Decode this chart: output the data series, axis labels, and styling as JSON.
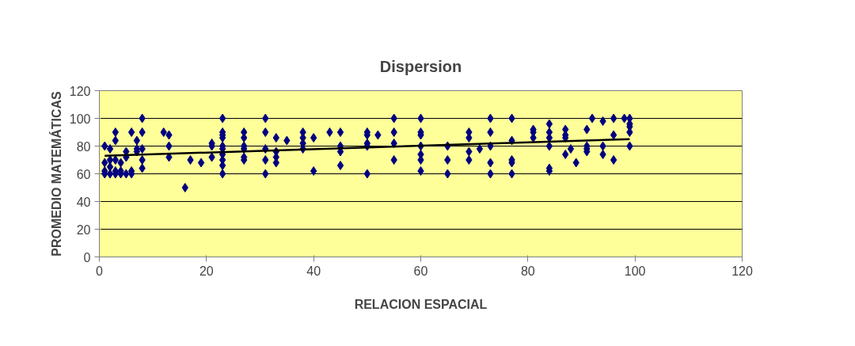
{
  "chart_data": {
    "type": "scatter",
    "title": "Dispersion",
    "xlabel": "RELACION ESPACIAL",
    "ylabel": "PROMEDIO MATEMÁTICAS",
    "xlim": [
      0,
      120
    ],
    "xticks": [
      0,
      20,
      40,
      60,
      80,
      100,
      120
    ],
    "ylim": [
      0,
      120
    ],
    "yticks": [
      0,
      20,
      40,
      60,
      80,
      100,
      120
    ],
    "grid": "y",
    "marker": "diamond",
    "series": [
      {
        "color": "#000080",
        "x": [
          1,
          1,
          1,
          1,
          2,
          2,
          2,
          2,
          3,
          3,
          3,
          3,
          3,
          4,
          4,
          4,
          5,
          5,
          5,
          6,
          6,
          6,
          7,
          7,
          7,
          8,
          8,
          8,
          8,
          8,
          12,
          13,
          13,
          13,
          16,
          17,
          19,
          21,
          21,
          21,
          23,
          23,
          23,
          23,
          23,
          23,
          23,
          23,
          23,
          23,
          27,
          27,
          27,
          27,
          27,
          27,
          31,
          31,
          31,
          31,
          31,
          33,
          33,
          33,
          33,
          35,
          38,
          38,
          38,
          38,
          40,
          40,
          43,
          45,
          45,
          45,
          45,
          50,
          50,
          50,
          50,
          50,
          52,
          55,
          55,
          55,
          55,
          60,
          60,
          60,
          60,
          60,
          60,
          60,
          65,
          65,
          65,
          69,
          69,
          69,
          69,
          71,
          73,
          73,
          73,
          73,
          73,
          77,
          77,
          77,
          77,
          77,
          81,
          81,
          81,
          84,
          84,
          84,
          84,
          84,
          84,
          87,
          87,
          87,
          87,
          88,
          89,
          91,
          91,
          91,
          91,
          92,
          94,
          94,
          94,
          96,
          96,
          96,
          98,
          99,
          99,
          99,
          99,
          99
        ],
        "values": [
          80,
          68,
          62,
          60,
          78,
          70,
          60,
          65,
          90,
          84,
          70,
          60,
          62,
          68,
          60,
          62,
          76,
          72,
          60,
          90,
          62,
          60,
          84,
          78,
          76,
          100,
          90,
          78,
          70,
          64,
          90,
          88,
          80,
          72,
          50,
          70,
          68,
          82,
          80,
          72,
          100,
          90,
          88,
          86,
          80,
          78,
          74,
          70,
          66,
          60,
          90,
          86,
          80,
          78,
          72,
          70,
          100,
          90,
          78,
          70,
          60,
          86,
          76,
          72,
          68,
          84,
          90,
          86,
          82,
          78,
          86,
          62,
          90,
          90,
          80,
          76,
          66,
          90,
          88,
          82,
          80,
          60,
          88,
          100,
          90,
          82,
          70,
          100,
          90,
          88,
          80,
          74,
          70,
          62,
          80,
          70,
          60,
          90,
          86,
          76,
          70,
          78,
          100,
          90,
          80,
          68,
          60,
          100,
          84,
          70,
          68,
          60,
          92,
          90,
          86,
          96,
          90,
          86,
          80,
          64,
          62,
          92,
          88,
          86,
          74,
          78,
          68,
          92,
          80,
          78,
          76,
          100,
          98,
          80,
          74,
          100,
          88,
          70,
          100,
          100,
          96,
          94,
          90,
          80
        ]
      },
      {
        "type": "line",
        "color": "#000000",
        "marker": "none",
        "x": [
          1,
          99
        ],
        "values": [
          73,
          85
        ]
      }
    ]
  }
}
